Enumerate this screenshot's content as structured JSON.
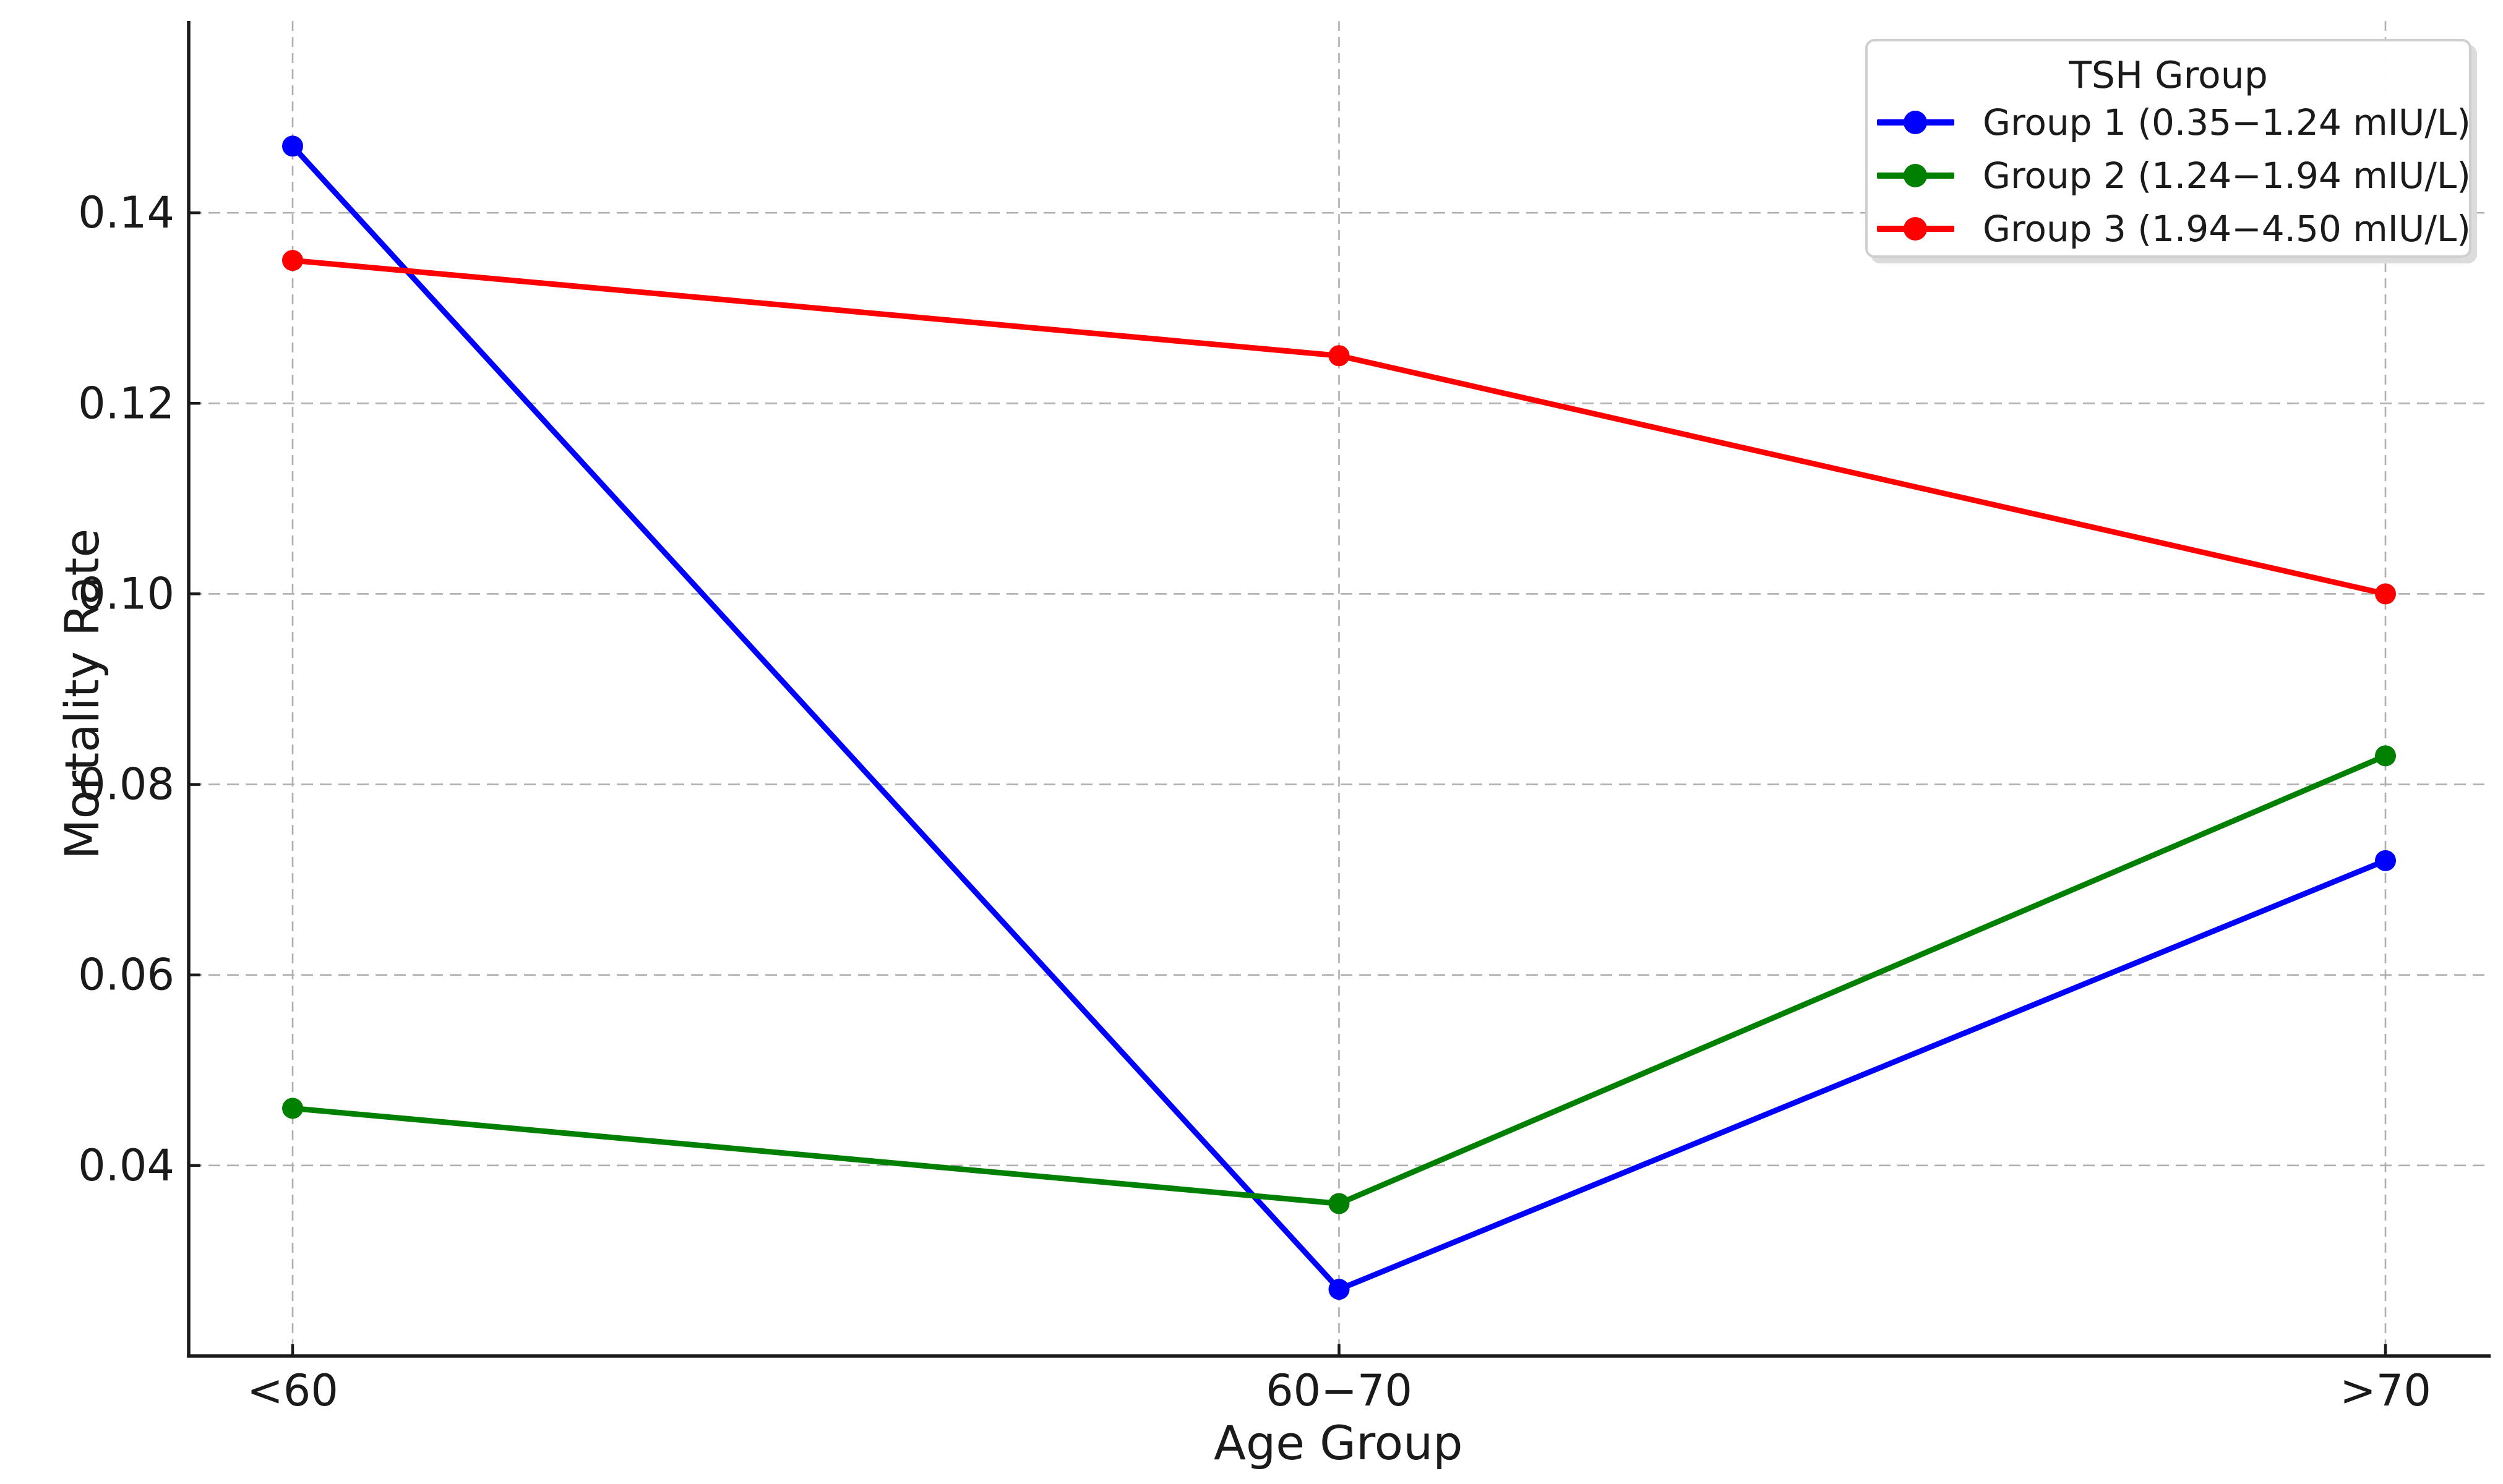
{
  "figure": {
    "background": "#ffffff",
    "text_color": "#1a1a1a",
    "spine_color": "#1a1a1a",
    "grid_color": "#b0b0b0"
  },
  "chart_data": {
    "type": "line",
    "title": "",
    "xlabel": "Age Group",
    "ylabel": "Mortality Rate",
    "categories": [
      "<60",
      "60−70",
      ">70"
    ],
    "yticks": [
      "0.04",
      "0.06",
      "0.08",
      "0.10",
      "0.12",
      "0.14"
    ],
    "ylim": [
      0.02,
      0.16
    ],
    "grid": "dashed-both-axes",
    "marker": "circle",
    "legend": {
      "title": "TSH Group",
      "position": "top-right"
    },
    "series": [
      {
        "name": "Group 1 (0.35−1.24 mIU/L)",
        "color": "#0000ff",
        "values": [
          0.147,
          0.027,
          0.072
        ]
      },
      {
        "name": "Group 2 (1.24−1.94 mIU/L)",
        "color": "#008000",
        "values": [
          0.046,
          0.036,
          0.083
        ]
      },
      {
        "name": "Group 3 (1.94−4.50 mIU/L)",
        "color": "#ff0000",
        "values": [
          0.135,
          0.125,
          0.1
        ]
      }
    ]
  }
}
